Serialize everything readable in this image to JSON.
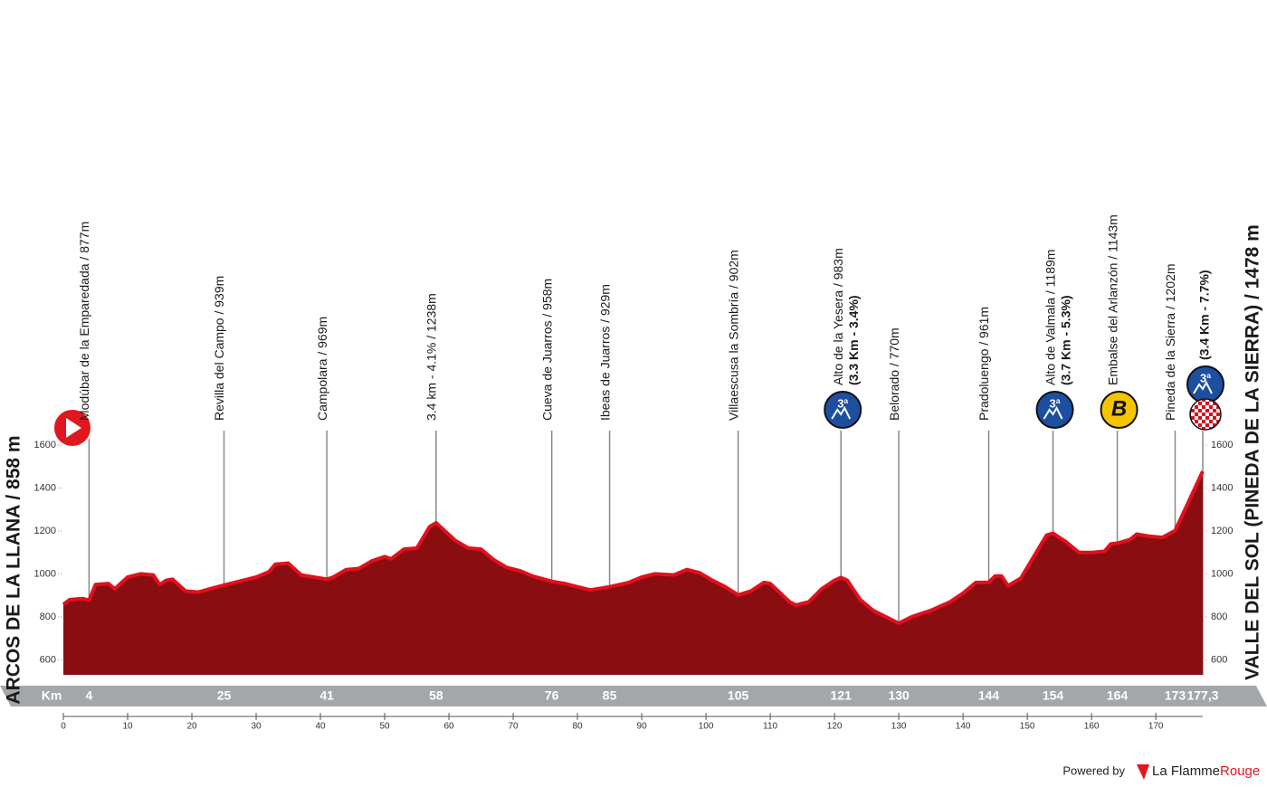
{
  "chart_data": {
    "type": "area",
    "start_label": "ARCOS DE LA LLANA / 858 m",
    "finish_label": "VALLE DEL SOL (PINEDA DE LA SIERRA) / 1478 m",
    "km_label": "Km",
    "x": [
      0,
      1,
      3,
      4,
      5,
      7,
      8,
      10,
      12,
      14,
      15,
      16,
      17,
      19,
      21,
      24,
      26,
      28,
      30,
      32,
      33,
      35,
      37,
      39,
      41,
      42,
      44,
      46,
      48,
      50,
      51,
      53,
      55,
      57,
      58,
      59,
      61,
      63,
      65,
      67,
      69,
      71,
      73,
      76,
      78,
      80,
      82,
      85,
      88,
      90,
      92,
      95,
      97,
      99,
      101,
      103,
      105,
      107,
      109,
      110,
      113,
      114,
      116,
      118,
      120,
      121,
      122,
      124,
      126,
      128,
      130,
      132,
      135,
      138,
      140,
      142,
      144,
      145,
      146,
      147,
      149,
      151,
      153,
      154,
      156,
      158,
      160,
      162,
      163,
      164,
      166,
      167,
      169,
      171,
      173,
      175,
      177.3
    ],
    "series": [
      {
        "color": "#8a0d12",
        "edge_color": "#e2101c",
        "values": [
          858,
          880,
          885,
          877,
          950,
          955,
          930,
          985,
          1000,
          995,
          950,
          970,
          975,
          920,
          915,
          940,
          955,
          970,
          985,
          1010,
          1045,
          1050,
          995,
          985,
          975,
          985,
          1020,
          1025,
          1060,
          1080,
          1070,
          1115,
          1120,
          1220,
          1238,
          1210,
          1155,
          1120,
          1115,
          1065,
          1030,
          1015,
          990,
          965,
          955,
          940,
          925,
          940,
          960,
          985,
          1000,
          995,
          1020,
          1005,
          970,
          940,
          902,
          920,
          960,
          955,
          870,
          855,
          870,
          930,
          970,
          983,
          970,
          880,
          830,
          800,
          770,
          800,
          830,
          870,
          910,
          960,
          961,
          990,
          990,
          945,
          980,
          1080,
          1180,
          1189,
          1150,
          1100,
          1100,
          1105,
          1140,
          1143,
          1160,
          1185,
          1175,
          1170,
          1202,
          1330,
          1478
        ]
      }
    ],
    "xlim": [
      0,
      177.3
    ],
    "xticks": [
      0,
      10,
      20,
      30,
      40,
      50,
      60,
      70,
      80,
      90,
      100,
      110,
      120,
      130,
      140,
      150,
      160,
      170
    ],
    "ylim": [
      530,
      1600
    ],
    "yticks": [
      600,
      800,
      1000,
      1200,
      1400,
      1600
    ],
    "waypoints": [
      {
        "km": 4,
        "name": "Modúbar de la Emparedada / 877m"
      },
      {
        "km": 25,
        "name": "Revilla del Campo / 939m"
      },
      {
        "km": 41,
        "name": "Campolara / 969m"
      },
      {
        "km": 58,
        "name": "3.4 km - 4.1% / 1238m"
      },
      {
        "km": 76,
        "name": "Cueva de Juarros / 958m"
      },
      {
        "km": 85,
        "name": "Ibeas de Juarros / 929m"
      },
      {
        "km": 105,
        "name": "Villaescusa la Sombría / 902m"
      },
      {
        "km": 121,
        "name": "Alto de la Yesera / 983m",
        "detail": "(3.3 Km - 3.4%)",
        "badge": "3ª"
      },
      {
        "km": 130,
        "name": "Belorado / 770m"
      },
      {
        "km": 144,
        "name": "Pradoluengo / 961m"
      },
      {
        "km": 154,
        "name": "Alto de Valmala / 1189m",
        "detail": "(3.7 Km - 5.3%)",
        "badge": "3ª"
      },
      {
        "km": 164,
        "name": "Embalse del Arlanzón / 1143m",
        "badge": "B"
      },
      {
        "km": 173,
        "name": "Pineda de la Sierra / 1202m"
      },
      {
        "km": {
          "value": 177.3,
          "label": "177,3"
        },
        "detail": "(3.4 Km - 7.7%)",
        "badge": "3ª"
      }
    ]
  },
  "footer": {
    "powered_by": "Powered by",
    "brand": "La Flamme",
    "brand_accent": "Rouge"
  }
}
